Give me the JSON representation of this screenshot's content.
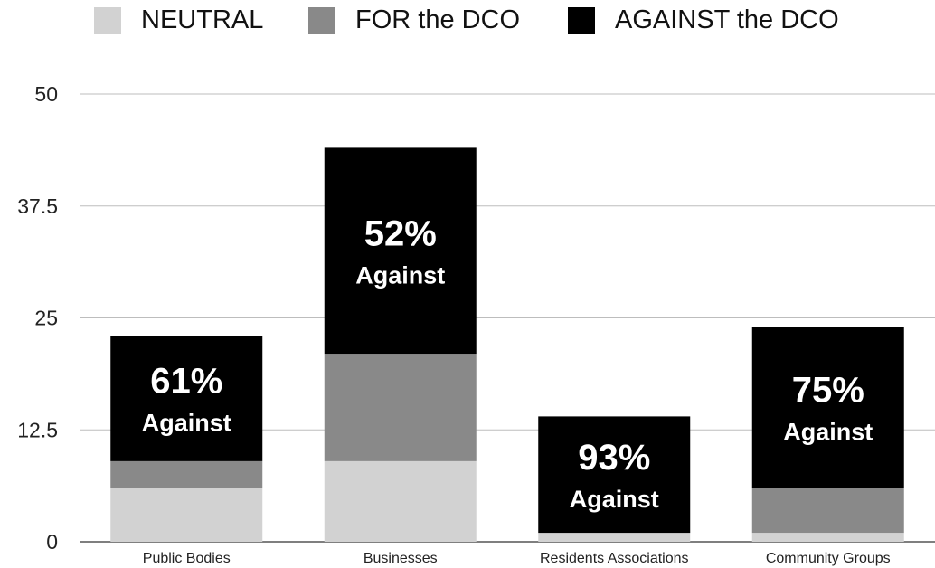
{
  "chart_data": {
    "type": "bar",
    "stacked": true,
    "categories": [
      "Public Bodies",
      "Businesses",
      "Residents Associations",
      "Community Groups"
    ],
    "series": [
      {
        "name": "NEUTRAL",
        "color": "#d2d2d2",
        "values": [
          6,
          9,
          1,
          1
        ]
      },
      {
        "name": "FOR the DCO",
        "color": "#898989",
        "values": [
          3,
          12,
          0,
          5
        ]
      },
      {
        "name": "AGAINST the DCO",
        "color": "#000000",
        "values": [
          14,
          23,
          13,
          18
        ]
      }
    ],
    "ylim": [
      0,
      50
    ],
    "yticks": [
      "0",
      "12.5",
      "25",
      "37.5",
      "50"
    ],
    "ytick_values": [
      0,
      12.5,
      25,
      37.5,
      50
    ],
    "grid": true,
    "legend_position": "top",
    "annotations": [
      {
        "category": "Public Bodies",
        "percent": "61%",
        "word": "Against"
      },
      {
        "category": "Businesses",
        "percent": "52%",
        "word": "Against"
      },
      {
        "category": "Residents Associations",
        "percent": "93%",
        "word": "Against"
      },
      {
        "category": "Community Groups",
        "percent": "75%",
        "word": "Against"
      }
    ]
  }
}
